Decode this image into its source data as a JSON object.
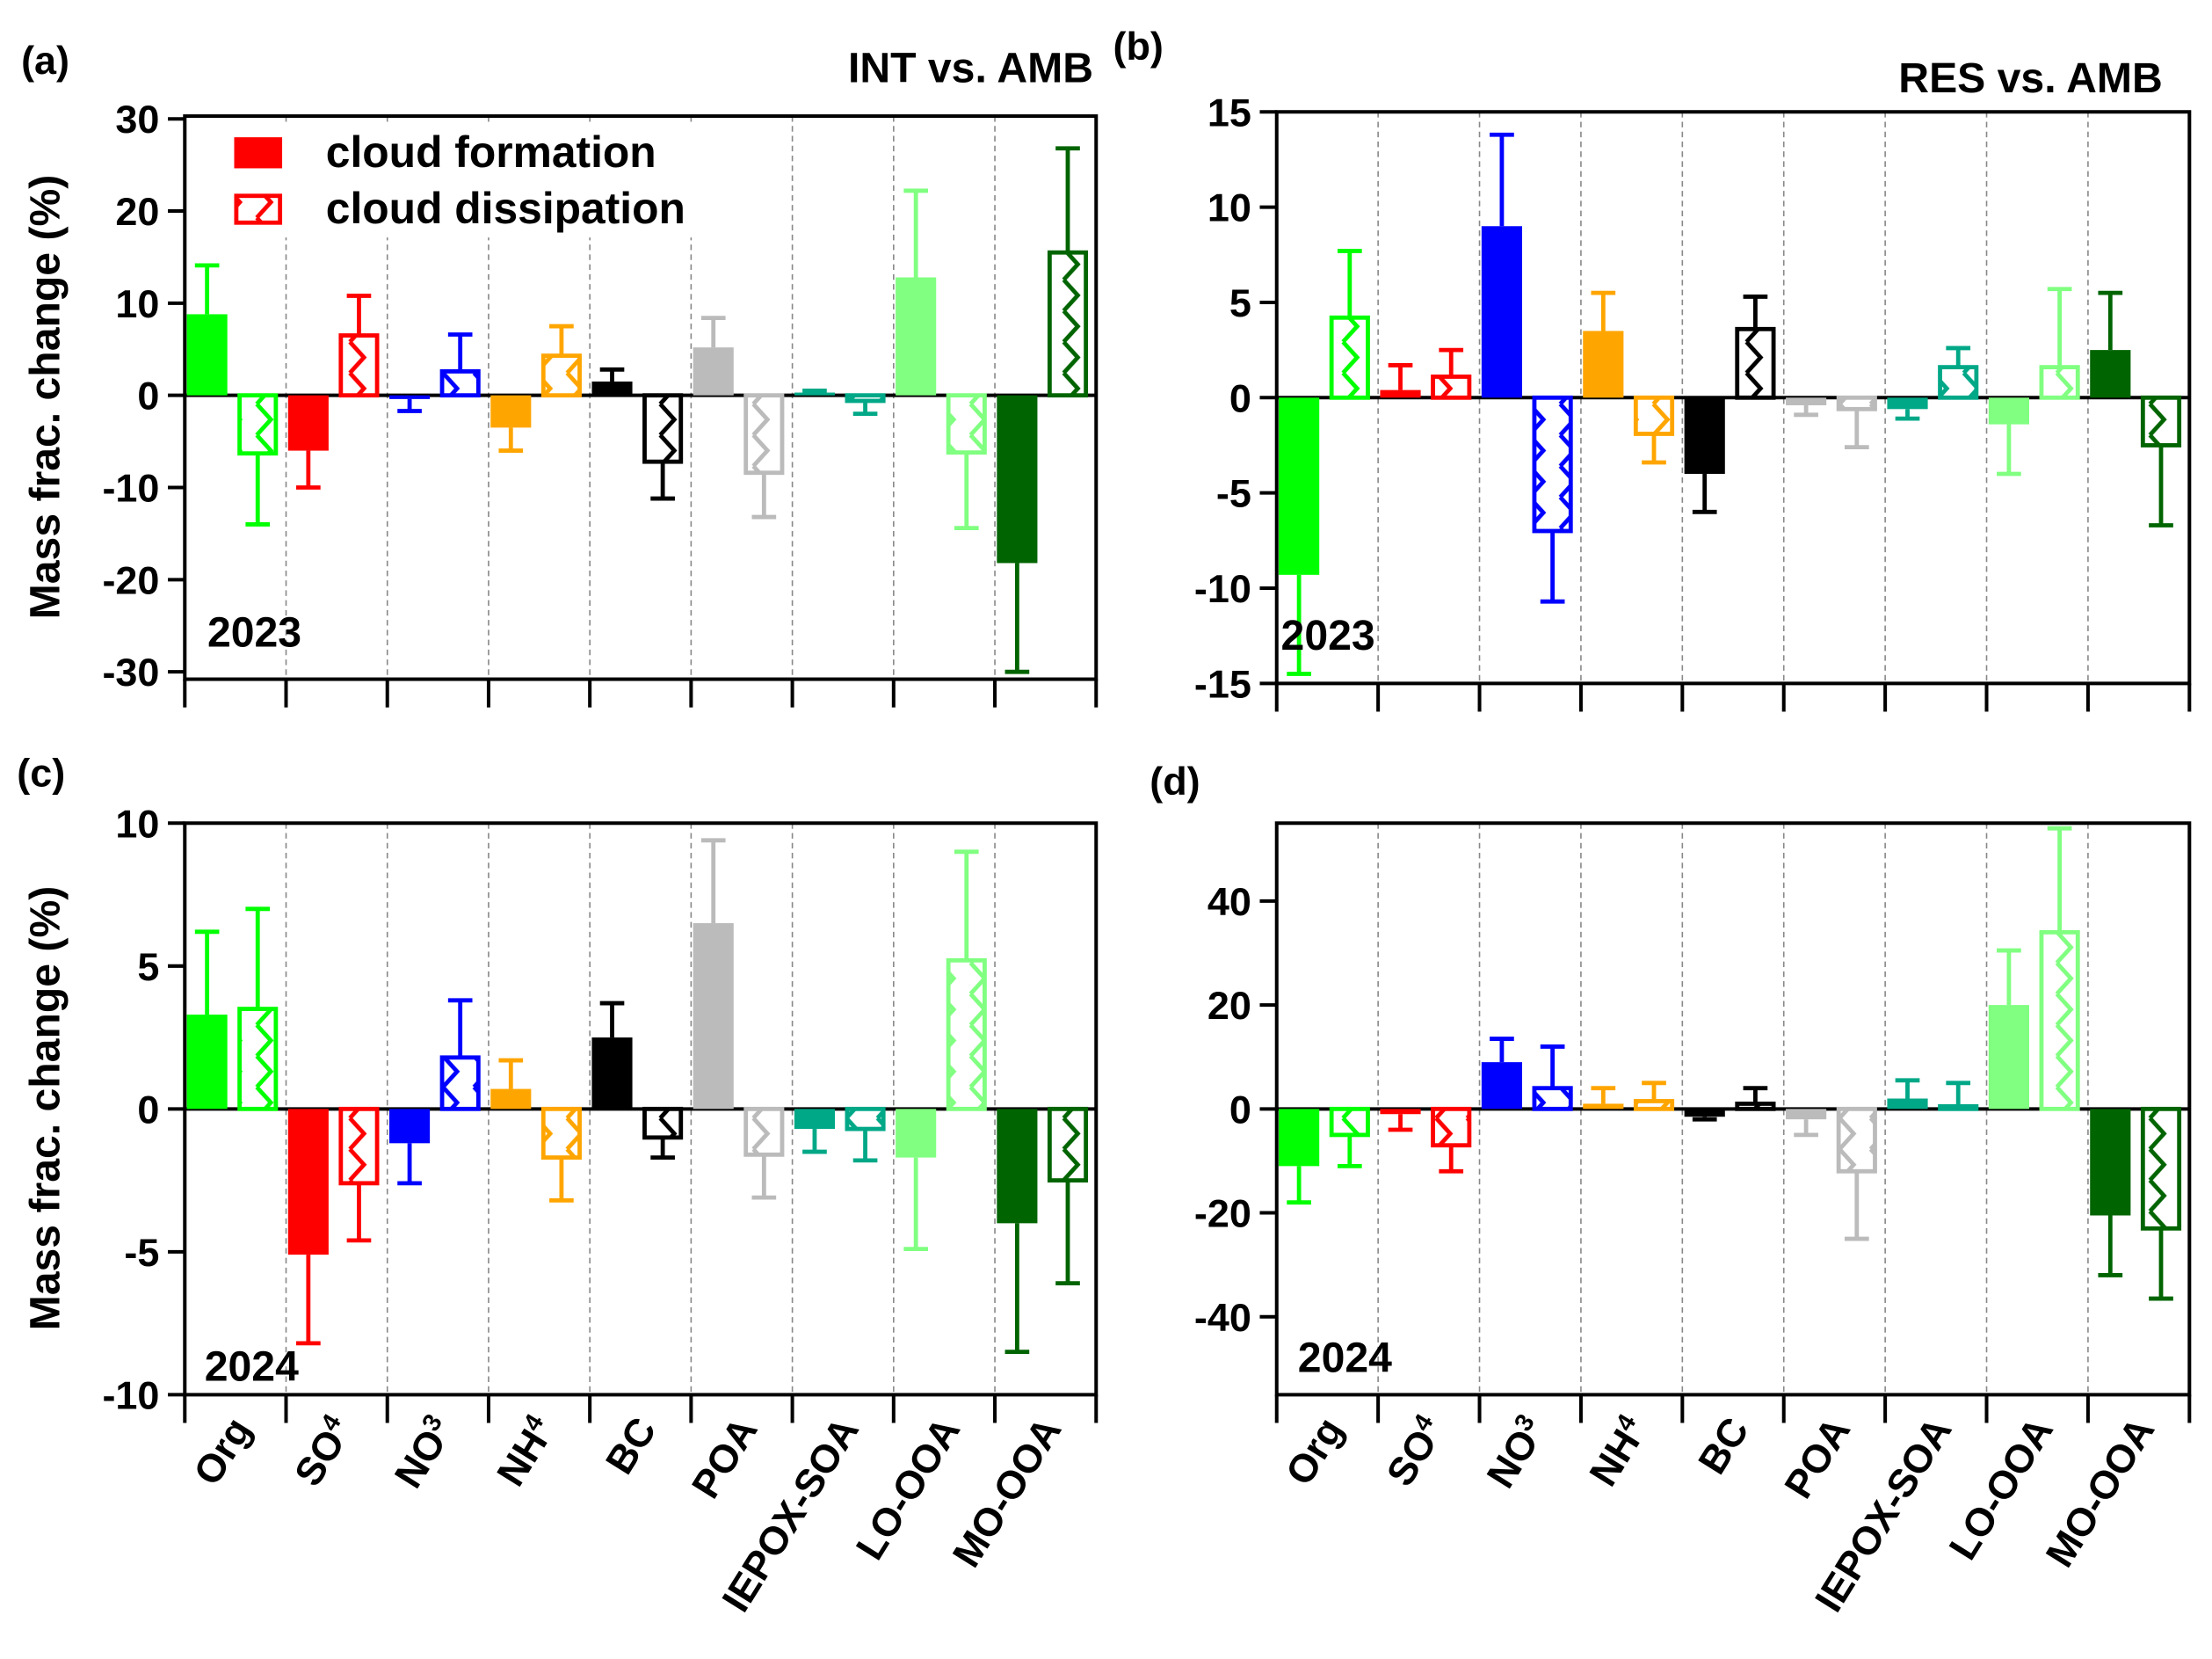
{
  "colors": {
    "Org": "#00ff00",
    "SO4": "#ff0000",
    "NO3": "#0000ff",
    "NH4": "#ffa500",
    "BC": "#000000",
    "POA": "#bbbbbb",
    "IEPOX-SOA": "#00a887",
    "LO-OOA": "#80ff80",
    "MO-OOA": "#006400"
  },
  "legend": {
    "formation": "cloud formation",
    "dissipation": "cloud dissipation"
  },
  "ylabel": "Mass frac. change (%)",
  "category_labels": [
    {
      "key": "Org",
      "main": "Org",
      "sub": ""
    },
    {
      "key": "SO4",
      "main": "SO",
      "sub": "4"
    },
    {
      "key": "NO3",
      "main": "NO",
      "sub": "3"
    },
    {
      "key": "NH4",
      "main": "NH",
      "sub": "4"
    },
    {
      "key": "BC",
      "main": "BC",
      "sub": ""
    },
    {
      "key": "POA",
      "main": "POA",
      "sub": ""
    },
    {
      "key": "IEPOX-SOA",
      "main": "IEPOX-SOA",
      "sub": ""
    },
    {
      "key": "LO-OOA",
      "main": "LO-OOA",
      "sub": ""
    },
    {
      "key": "MO-OOA",
      "main": "MO-OOA",
      "sub": ""
    }
  ],
  "chart_data": [
    {
      "type": "bar",
      "panel": "(a)",
      "title": "INT vs. AMB",
      "year": "2023",
      "ylabel": "Mass frac. change (%)",
      "ylim": [
        -30.8,
        30.3
      ],
      "yticks": [
        30,
        20,
        10,
        0,
        -10,
        -20,
        -30
      ],
      "categories": [
        "Org",
        "SO4",
        "NO3",
        "NH4",
        "BC",
        "POA",
        "IEPOX-SOA",
        "LO-OOA",
        "MO-OOA"
      ],
      "series": [
        {
          "name": "cloud formation",
          "values": [
            8.8,
            -6.0,
            -0.4,
            -3.5,
            1.5,
            5.2,
            0.3,
            12.8,
            -18.2
          ],
          "errors": [
            5.3,
            4.0,
            1.3,
            2.5,
            1.3,
            3.2,
            0.2,
            9.4,
            11.8
          ]
        },
        {
          "name": "cloud dissipation",
          "values": [
            -6.3,
            6.5,
            2.6,
            4.3,
            -7.2,
            -8.4,
            -0.6,
            -6.2,
            15.5
          ],
          "errors": [
            7.7,
            4.3,
            4.0,
            3.2,
            4.0,
            4.8,
            1.4,
            8.2,
            11.3
          ]
        }
      ],
      "legend_position": "top-left"
    },
    {
      "type": "bar",
      "panel": "(b)",
      "title": "RES vs. AMB",
      "year": "2023",
      "ylabel": "",
      "ylim": [
        -15,
        15
      ],
      "yticks": [
        15,
        10,
        5,
        0,
        -5,
        -10,
        -15
      ],
      "categories": [
        "Org",
        "SO4",
        "NO3",
        "NH4",
        "BC",
        "POA",
        "IEPOX-SOA",
        "LO-OOA",
        "MO-OOA"
      ],
      "series": [
        {
          "name": "cloud formation",
          "values": [
            -9.3,
            0.4,
            9.0,
            3.5,
            -4.0,
            -0.4,
            -0.6,
            -1.4,
            2.5
          ],
          "errors": [
            5.2,
            1.3,
            4.8,
            2.0,
            2.0,
            0.5,
            0.5,
            2.6,
            3.0
          ]
        },
        {
          "name": "cloud dissipation",
          "values": [
            4.2,
            1.1,
            -7.0,
            -1.9,
            3.6,
            -0.6,
            1.6,
            1.6,
            -2.5
          ],
          "errors": [
            3.5,
            1.4,
            3.7,
            1.5,
            1.7,
            2.0,
            1.0,
            4.1,
            4.2
          ]
        }
      ]
    },
    {
      "type": "bar",
      "panel": "(c)",
      "title": "",
      "year": "2024",
      "ylabel": "Mass frac. change (%)",
      "ylim": [
        -10,
        10
      ],
      "yticks": [
        10,
        5,
        0,
        -5,
        -10
      ],
      "categories": [
        "Org",
        "SO4",
        "NO3",
        "NH4",
        "BC",
        "POA",
        "IEPOX-SOA",
        "LO-OOA",
        "MO-OOA"
      ],
      "series": [
        {
          "name": "cloud formation",
          "values": [
            3.3,
            -5.1,
            -1.2,
            0.7,
            2.5,
            6.5,
            -0.7,
            -1.7,
            -4.0
          ],
          "errors": [
            2.9,
            3.1,
            1.4,
            1.0,
            1.2,
            2.9,
            0.8,
            3.2,
            4.5
          ]
        },
        {
          "name": "cloud dissipation",
          "values": [
            3.5,
            -2.6,
            1.8,
            -1.7,
            -1.0,
            -1.6,
            -0.7,
            5.2,
            -2.5
          ],
          "errors": [
            3.5,
            2.0,
            2.0,
            1.5,
            0.7,
            1.5,
            1.1,
            3.8,
            3.6
          ]
        }
      ]
    },
    {
      "type": "bar",
      "panel": "(d)",
      "title": "",
      "year": "2024",
      "ylabel": "",
      "ylim": [
        -55,
        55
      ],
      "yticks": [
        40,
        20,
        0,
        -20,
        -40
      ],
      "categories": [
        "Org",
        "SO4",
        "NO3",
        "NH4",
        "BC",
        "POA",
        "IEPOX-SOA",
        "LO-OOA",
        "MO-OOA"
      ],
      "series": [
        {
          "name": "cloud formation",
          "values": [
            -11,
            -1,
            9,
            1,
            -1.5,
            -2,
            2,
            20,
            -20.5
          ],
          "errors": [
            7,
            3,
            4.5,
            3,
            0.5,
            3,
            3.5,
            10.5,
            11.5
          ]
        },
        {
          "name": "cloud dissipation",
          "values": [
            -5,
            -7,
            4,
            1.5,
            1,
            -12,
            0.5,
            34,
            -23
          ],
          "errors": [
            6,
            5,
            8,
            3.5,
            3,
            13,
            4.5,
            20,
            13.5
          ]
        }
      ]
    }
  ]
}
